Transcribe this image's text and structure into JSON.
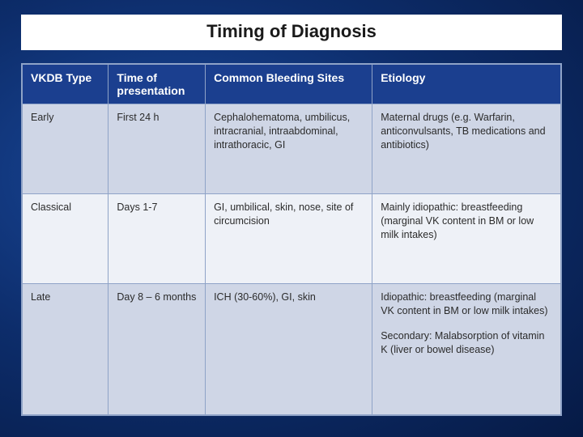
{
  "title": "Timing of Diagnosis",
  "table": {
    "columns": [
      "VKDB Type",
      "Time of presentation",
      "Common Bleeding Sites",
      "Etiology"
    ],
    "col_widths_pct": [
      16,
      18,
      31,
      35
    ],
    "header_bg": "#1b3f8f",
    "header_fg": "#ffffff",
    "row_odd_bg": "#cfd6e6",
    "row_even_bg": "#eef1f7",
    "border_color": "#8fa3c7",
    "text_color": "#2b2b2b",
    "font_size_body": 12.5,
    "font_size_header": 14,
    "rows": [
      {
        "type": "Early",
        "time": "First 24 h",
        "sites": "Cephalohematoma, umbilicus, intracranial, intraabdominal, intrathoracic, GI",
        "etiology": "Maternal drugs (e.g. Warfarin, anticonvulsants, TB medications and antibiotics)"
      },
      {
        "type": "Classical",
        "time": "Days 1-7",
        "sites": "GI, umbilical, skin, nose, site of circumcision",
        "etiology": "Mainly idiopathic: breastfeeding  (marginal VK content in BM or low milk intakes)"
      },
      {
        "type": "Late",
        "time": "Day 8 – 6 months",
        "sites": "ICH (30-60%), GI, skin",
        "etiology": "Idiopathic: breastfeeding  (marginal VK content in BM or low milk intakes)",
        "etiology_secondary": "Secondary: Malabsorption of vitamin K (liver or bowel disease)"
      }
    ]
  },
  "slide_bg_gradient": {
    "inner": "#1a4a9e",
    "mid": "#0d2d6b",
    "outer": "#061a45"
  },
  "title_color": "#1a1a1a",
  "title_bg": "#ffffff",
  "title_fontsize": 22
}
